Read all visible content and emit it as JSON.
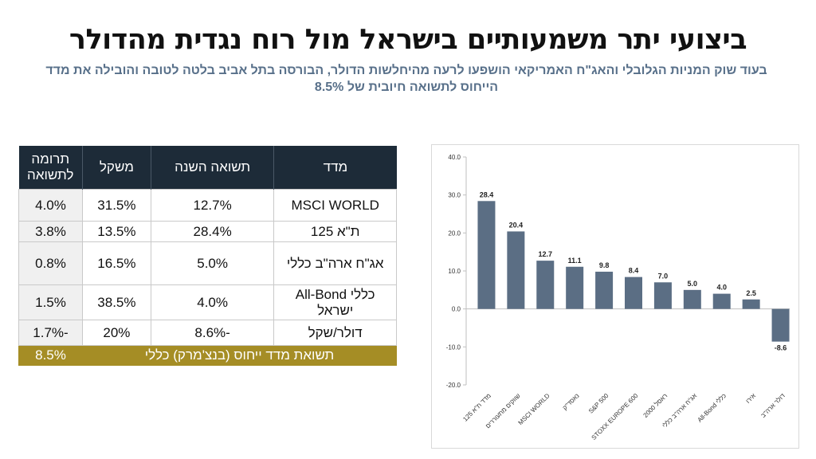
{
  "slide": {
    "title": "ביצועי יתר משמעותיים בישראל מול רוח נגדית מהדולר",
    "subtitle": "בעוד שוק המניות הגלובלי והאג\"ח האמריקאי הושפעו לרעה מהיחלשות הדולר, הבורסה בתל אביב בלטה לטובה והובילה את מדד הייחוס לתשואה חיובית של 8.5%"
  },
  "table": {
    "headers": [
      "מדד",
      "תשואה השנה",
      "משקל",
      "תרומה לתשואה"
    ],
    "rows": [
      {
        "index": "MSCI WORLD",
        "ret": "12.7%",
        "weight": "31.5%",
        "contrib": "4.0%"
      },
      {
        "index": "ת\"א 125",
        "ret": "28.4%",
        "weight": "13.5%",
        "contrib": "3.8%"
      },
      {
        "index": "אג\"ח ארה\"ב כללי",
        "ret": "5.0%",
        "weight": "16.5%",
        "contrib": "0.8%"
      },
      {
        "index": "כללי All-Bond ישראל",
        "ret": "4.0%",
        "weight": "38.5%",
        "contrib": "1.5%"
      },
      {
        "index": "דולר/שקל",
        "ret": "-8.6%",
        "weight": "20%",
        "contrib": "-1.7%"
      }
    ],
    "total_label": "תשואת מדד ייחוס (בנצ'מרק) כללי",
    "total_value": "8.5%"
  },
  "colors": {
    "header_bg": "#1d2b38",
    "total_bg": "#a58d25",
    "bar": "#5b6e84"
  },
  "chart_data": {
    "type": "bar",
    "categories": [
      "מדד ת\"א 125",
      "שווקים מתעוררים",
      "MSCI WORLD",
      "נאסד\"ק",
      "S&P 500",
      "STOXX EUROPE 600",
      "ראסל 2000",
      "אג\"ח ארה\"ב כללי",
      "All-Bond כללי",
      "אירו",
      "דולר ארה\"ב"
    ],
    "values": [
      28.4,
      20.4,
      12.7,
      11.1,
      9.8,
      8.4,
      7.0,
      5.0,
      4.0,
      2.5,
      -8.6
    ],
    "value_labels": [
      "28.4",
      "20.4",
      "12.7",
      "11.1",
      "9.8",
      "8.4",
      "7.0",
      "5.0",
      "4.0",
      "2.5",
      "-8.6"
    ],
    "ylim": [
      -20,
      40
    ],
    "yticks": [
      -20,
      -10,
      0,
      10,
      20,
      30,
      40
    ],
    "ytick_labels": [
      "-20.0",
      "-10.0",
      "0.0",
      "10.0",
      "20.0",
      "30.0",
      "40.0"
    ],
    "grid": false,
    "legend": "none"
  }
}
